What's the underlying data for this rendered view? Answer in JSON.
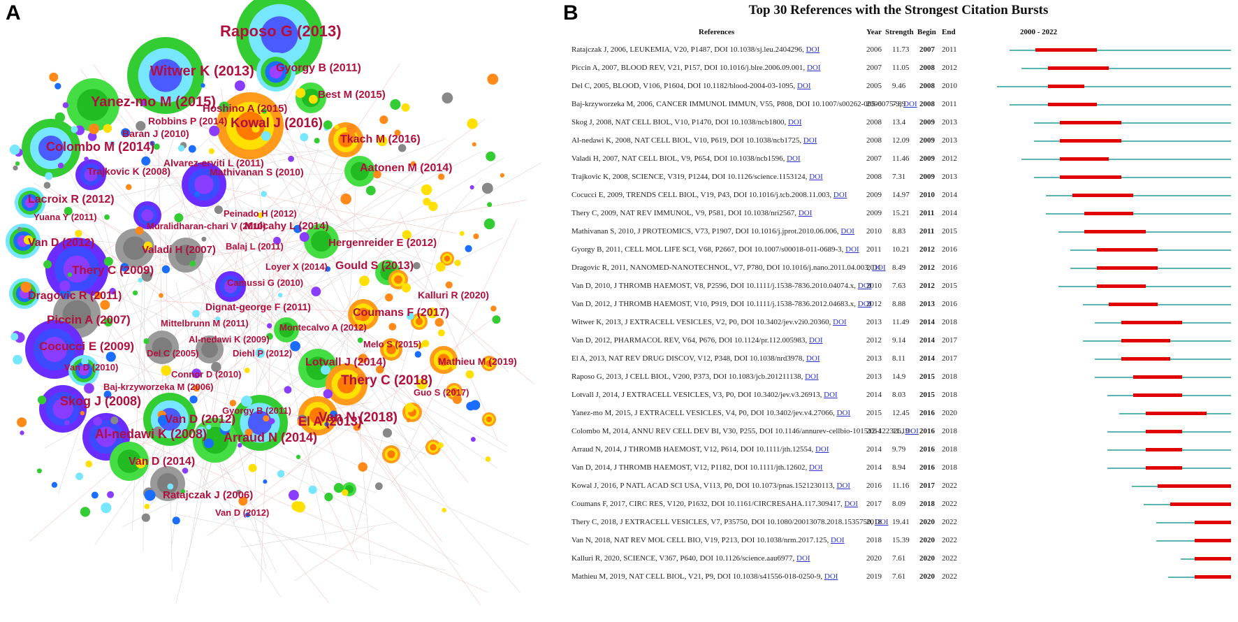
{
  "panel_a": {
    "label": "A",
    "labels": [
      "Raposo G (2013)",
      "Witwer K (2013)",
      "Gyorgy B (2011)",
      "Best M (2015)",
      "Yanez-mo M (2015)",
      "Hoshino A (2015)",
      "Robbins P (2014)",
      "Kowal J (2016)",
      "Baran J (2010)",
      "Tkach M (2016)",
      "Colombo M (2014)",
      "Alvarez-erviti L (2011)",
      "Trajkovic K (2008)",
      "Mathivanan S (2010)",
      "Aatonen M (2014)",
      "Lacroix R (2012)",
      "Peinado H (2012)",
      "Yuana Y (2011)",
      "Muralidharan-chari V (2010)",
      "Mulcahy L (2014)",
      "Van D (2012)",
      "Hergenreider E (2012)",
      "Valadi H (2007)",
      "Balaj L (2011)",
      "Thery C (2009)",
      "Loyer X (2014)",
      "Gould S (2013)",
      "Camussi G (2010)",
      "Kalluri R (2020)",
      "Dragovic R (2011)",
      "Dignat-george F (2011)",
      "Coumans F (2017)",
      "Piccin A (2007)",
      "Mittelbrunn M (2011)",
      "Montecalvo A (2012)",
      "Cocucci E (2009)",
      "Al-nedawi K (2009)",
      "Melo S (2015)",
      "Del C (2005)",
      "Diehl P (2012)",
      "Mathieu M (2019)",
      "Van D (2010)",
      "Lotvall J (2014)",
      "Thery C (2018)",
      "Connor D (2010)",
      "Baj-krzyworzeka M (2006)",
      "Guo S (2017)",
      "Gyorgy B (2011)",
      "El A (2013)",
      "Skog J (2008)",
      "Van N (2018)",
      "Van D (2012)",
      "Al-nedawi K (2008)",
      "Arraud N (2014)",
      "Van D (2014)",
      "Ratajczak J (2006)",
      "Van D (2012)"
    ]
  },
  "panel_b": {
    "label": "B",
    "title": "Top 30 References with the Strongest Citation Bursts",
    "headers": {
      "references": "References",
      "year": "Year",
      "strength": "Strength",
      "begin": "Begin",
      "end": "End",
      "range": "2000 - 2022"
    },
    "doi_label": "DOI",
    "colors": {
      "burst": "#e00000",
      "base": "#5ab5b0"
    }
  },
  "chart_data": {
    "type": "table",
    "title": "Top 30 References with the Strongest Citation Bursts",
    "timeline": [
      2000,
      2022
    ],
    "rows": [
      {
        "reference": "Ratajczak J, 2006, LEUKEMIA, V20, P1487, DOI 10.1038/sj.leu.2404296,",
        "year": 2006,
        "strength": "11.73",
        "begin": 2007,
        "end": 2011
      },
      {
        "reference": "Piccin A, 2007, BLOOD REV, V21, P157, DOI 10.1016/j.blre.2006.09.001,",
        "year": 2007,
        "strength": "11.05",
        "begin": 2008,
        "end": 2012
      },
      {
        "reference": "Del C, 2005, BLOOD, V106, P1604, DOI 10.1182/blood-2004-03-1095,",
        "year": 2005,
        "strength": "9.46",
        "begin": 2008,
        "end": 2010
      },
      {
        "reference": "Baj-krzyworzeka M, 2006, CANCER IMMUNOL IMMUN, V55, P808, DOI 10.1007/s00262-005-0075-9,",
        "year": 2006,
        "strength": "7.89",
        "begin": 2008,
        "end": 2011
      },
      {
        "reference": "Skog J, 2008, NAT CELL BIOL, V10, P1470, DOI 10.1038/ncb1800,",
        "year": 2008,
        "strength": "13.4",
        "begin": 2009,
        "end": 2013
      },
      {
        "reference": "Al-nedawi K, 2008, NAT CELL BIOL, V10, P619, DOI 10.1038/ncb1725,",
        "year": 2008,
        "strength": "12.09",
        "begin": 2009,
        "end": 2013
      },
      {
        "reference": "Valadi H, 2007, NAT CELL BIOL, V9, P654, DOI 10.1038/ncb1596,",
        "year": 2007,
        "strength": "11.46",
        "begin": 2009,
        "end": 2012
      },
      {
        "reference": "Trajkovic K, 2008, SCIENCE, V319, P1244, DOI 10.1126/science.1153124,",
        "year": 2008,
        "strength": "7.31",
        "begin": 2009,
        "end": 2013
      },
      {
        "reference": "Cocucci E, 2009, TRENDS CELL BIOL, V19, P43, DOI 10.1016/j.tcb.2008.11.003,",
        "year": 2009,
        "strength": "14.97",
        "begin": 2010,
        "end": 2014
      },
      {
        "reference": "Thery C, 2009, NAT REV IMMUNOL, V9, P581, DOI 10.1038/nri2567,",
        "year": 2009,
        "strength": "15.21",
        "begin": 2011,
        "end": 2014
      },
      {
        "reference": "Mathivanan S, 2010, J PROTEOMICS, V73, P1907, DOI 10.1016/j.jprot.2010.06.006,",
        "year": 2010,
        "strength": "8.83",
        "begin": 2011,
        "end": 2015
      },
      {
        "reference": "Gyorgy B, 2011, CELL MOL LIFE SCI, V68, P2667, DOI 10.1007/s00018-011-0689-3,",
        "year": 2011,
        "strength": "10.21",
        "begin": 2012,
        "end": 2016
      },
      {
        "reference": "Dragovic R, 2011, NANOMED-NANOTECHNOL, V7, P780, DOI 10.1016/j.nano.2011.04.003,",
        "year": 2011,
        "strength": "8.49",
        "begin": 2012,
        "end": 2016
      },
      {
        "reference": "Van D, 2010, J THROMB HAEMOST, V8, P2596, DOI 10.1111/j.1538-7836.2010.04074.x,",
        "year": 2010,
        "strength": "7.63",
        "begin": 2012,
        "end": 2015
      },
      {
        "reference": "Van D, 2012, J THROMB HAEMOST, V10, P919, DOI 10.1111/j.1538-7836.2012.04683.x,",
        "year": 2012,
        "strength": "8.88",
        "begin": 2013,
        "end": 2016
      },
      {
        "reference": "Witwer K, 2013, J EXTRACELL VESICLES, V2, P0, DOI 10.3402/jev.v2i0.20360,",
        "year": 2013,
        "strength": "11.49",
        "begin": 2014,
        "end": 2018
      },
      {
        "reference": "Van D, 2012, PHARMACOL REV, V64, P676, DOI 10.1124/pr.112.005983,",
        "year": 2012,
        "strength": "9.14",
        "begin": 2014,
        "end": 2017
      },
      {
        "reference": "El A, 2013, NAT REV DRUG DISCOV, V12, P348, DOI 10.1038/nrd3978,",
        "year": 2013,
        "strength": "8.11",
        "begin": 2014,
        "end": 2017
      },
      {
        "reference": "Raposo G, 2013, J CELL BIOL, V200, P373, DOI 10.1083/jcb.201211138,",
        "year": 2013,
        "strength": "14.9",
        "begin": 2015,
        "end": 2018
      },
      {
        "reference": "Lotvall J, 2014, J EXTRACELL VESICLES, V3, P0, DOI 10.3402/jev.v3.26913,",
        "year": 2014,
        "strength": "8.03",
        "begin": 2015,
        "end": 2018
      },
      {
        "reference": "Yanez-mo M, 2015, J EXTRACELL VESICLES, V4, P0, DOI 10.3402/jev.v4.27066,",
        "year": 2015,
        "strength": "12.45",
        "begin": 2016,
        "end": 2020
      },
      {
        "reference": "Colombo M, 2014, ANNU REV CELL DEV BI, V30, P255, DOI 10.1146/annurev-cellbio-101512-122326,",
        "year": 2014,
        "strength": "11.19",
        "begin": 2016,
        "end": 2018
      },
      {
        "reference": "Arraud N, 2014, J THROMB HAEMOST, V12, P614, DOI 10.1111/jth.12554,",
        "year": 2014,
        "strength": "9.79",
        "begin": 2016,
        "end": 2018
      },
      {
        "reference": "Van D, 2014, J THROMB HAEMOST, V12, P1182, DOI 10.1111/jth.12602,",
        "year": 2014,
        "strength": "8.94",
        "begin": 2016,
        "end": 2018
      },
      {
        "reference": "Kowal J, 2016, P NATL ACAD SCI USA, V113, P0, DOI 10.1073/pnas.1521230113,",
        "year": 2016,
        "strength": "11.16",
        "begin": 2017,
        "end": 2022
      },
      {
        "reference": "Coumans F, 2017, CIRC RES, V120, P1632, DOI 10.1161/CIRCRESAHA.117.309417,",
        "year": 2017,
        "strength": "8.09",
        "begin": 2018,
        "end": 2022
      },
      {
        "reference": "Thery C, 2018, J EXTRACELL VESICLES, V7, P35750, DOI 10.1080/20013078.2018.1535750,",
        "year": 2018,
        "strength": "19.41",
        "begin": 2020,
        "end": 2022
      },
      {
        "reference": "Van N, 2018, NAT REV MOL CELL BIO, V19, P213, DOI 10.1038/nrm.2017.125,",
        "year": 2018,
        "strength": "15.39",
        "begin": 2020,
        "end": 2022
      },
      {
        "reference": "Kalluri R, 2020, SCIENCE, V367, P640, DOI 10.1126/science.aau6977,",
        "year": 2020,
        "strength": "7.61",
        "begin": 2020,
        "end": 2022
      },
      {
        "reference": "Mathieu M, 2019, NAT CELL BIOL, V21, P9, DOI 10.1038/s41556-018-0250-9,",
        "year": 2019,
        "strength": "7.61",
        "begin": 2020,
        "end": 2022
      }
    ]
  }
}
